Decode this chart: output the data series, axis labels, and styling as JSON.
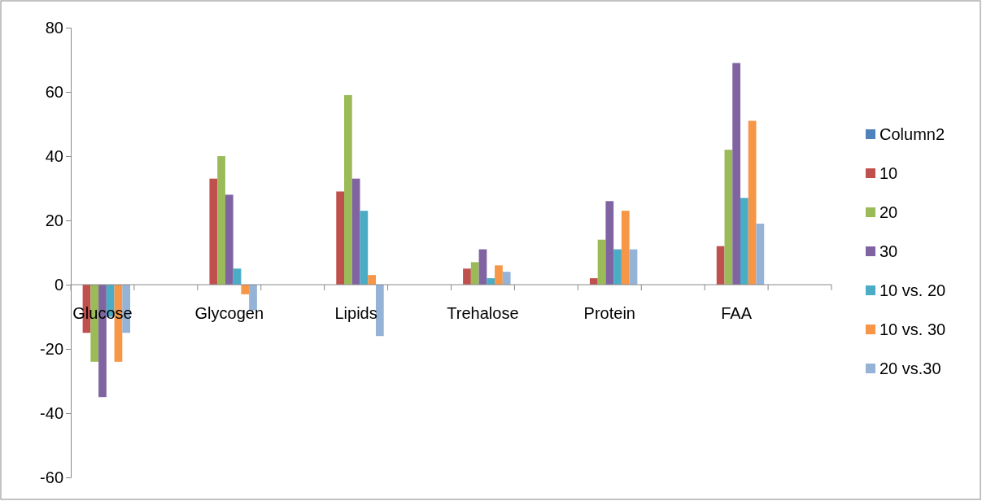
{
  "chart_data": {
    "type": "bar",
    "categories": [
      "Glucose",
      null,
      "Glycogen",
      null,
      "Lipids",
      null,
      "Trehalose",
      null,
      "Protein",
      null,
      "FAA",
      null
    ],
    "series": [
      {
        "name": "Column2",
        "color": "#4f81bd",
        "values": [
          null,
          null,
          null,
          null,
          null,
          null,
          null,
          null,
          null,
          null,
          null,
          null
        ]
      },
      {
        "name": "10",
        "color": "#c0504d",
        "values": [
          -15,
          null,
          33,
          null,
          29,
          null,
          5,
          null,
          2,
          null,
          12,
          null
        ]
      },
      {
        "name": "20",
        "color": "#9bbb59",
        "values": [
          -24,
          null,
          40,
          null,
          59,
          null,
          7,
          null,
          14,
          null,
          42,
          null
        ]
      },
      {
        "name": "30",
        "color": "#8064a2",
        "values": [
          -35,
          null,
          28,
          null,
          33,
          null,
          11,
          null,
          26,
          null,
          69,
          null
        ]
      },
      {
        "name": "10 vs. 20",
        "color": "#4bacc6",
        "values": [
          -10,
          null,
          5,
          null,
          23,
          null,
          2,
          null,
          11,
          null,
          27,
          null
        ]
      },
      {
        "name": "10 vs. 30",
        "color": "#f79646",
        "values": [
          -24,
          null,
          -3,
          null,
          3,
          null,
          6,
          null,
          23,
          null,
          51,
          null
        ]
      },
      {
        "name": "20 vs.30",
        "color": "#95b3d7",
        "values": [
          -15,
          null,
          -8,
          null,
          -16,
          null,
          4,
          null,
          11,
          null,
          19,
          null
        ]
      }
    ],
    "ylim": [
      -60,
      80
    ],
    "yticks": [
      -60,
      -40,
      -20,
      0,
      20,
      40,
      60,
      80
    ],
    "legend": "right"
  }
}
